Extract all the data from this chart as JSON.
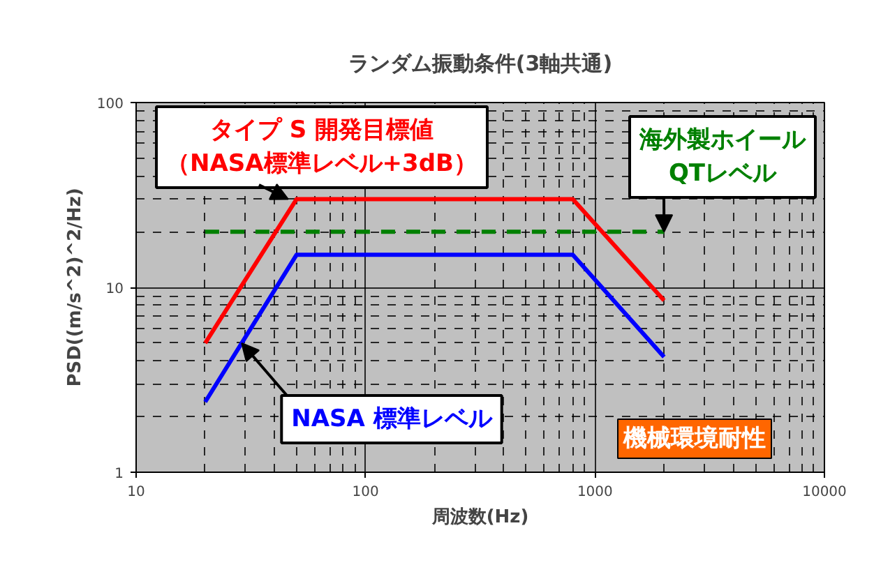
{
  "chart_data": {
    "type": "line",
    "title": "ランダム振動条件(3軸共通)",
    "xlabel": "周波数(Hz)",
    "ylabel": "PSD((m/s^2)^2/Hz)",
    "log": "xy",
    "xlim": [
      10,
      10000
    ],
    "ylim": [
      1,
      100
    ],
    "xticks": [
      10,
      100,
      1000,
      10000
    ],
    "yticks": [
      1,
      10,
      100
    ],
    "grid": true,
    "series": [
      {
        "name": "タイプ S 開発目標値（NASA標準レベル+3dB）",
        "color": "#ff0000",
        "x": [
          20,
          50,
          800,
          2000
        ],
        "values": [
          5,
          30,
          30,
          8.5
        ]
      },
      {
        "name": "NASA 標準レベル",
        "color": "#0000ff",
        "x": [
          20,
          50,
          800,
          2000
        ],
        "values": [
          2.4,
          15,
          15,
          4.2
        ]
      },
      {
        "name": "海外製ホイールQTレベル",
        "color": "#008000",
        "x": [
          20,
          2000
        ],
        "values": [
          20,
          20
        ],
        "line_style": "dashed"
      }
    ],
    "annotations": [
      "機械環境耐性"
    ]
  }
}
